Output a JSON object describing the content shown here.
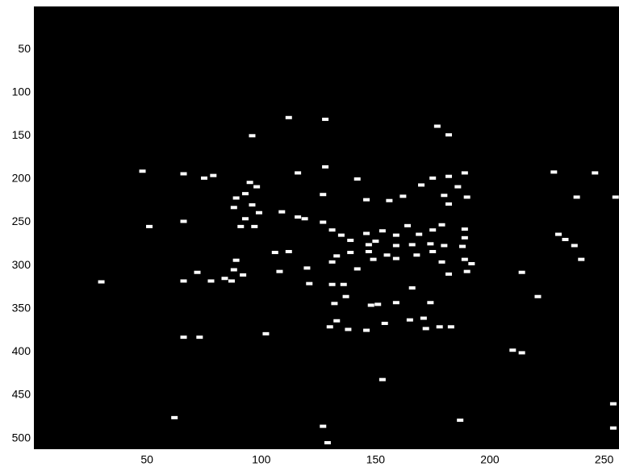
{
  "chart_data": {
    "type": "image",
    "background": "#000000",
    "color": "#ffffff",
    "xlim": [
      0.5,
      256.5
    ],
    "ylim": [
      0.5,
      512.5
    ],
    "y_reversed": true,
    "xticks": [
      50,
      100,
      150,
      200,
      250
    ],
    "yticks": [
      50,
      100,
      150,
      200,
      250,
      300,
      350,
      400,
      450,
      500
    ],
    "spots": {
      "x": [
        112,
        128,
        96,
        177,
        182,
        48,
        66,
        75,
        79,
        116,
        128,
        142,
        95,
        98,
        175,
        189,
        182,
        170,
        186,
        190,
        180,
        162,
        156,
        146,
        182,
        127,
        89,
        93,
        88,
        96,
        99,
        109,
        93,
        116,
        119,
        91,
        97,
        51,
        66,
        127,
        131,
        135,
        139,
        146,
        150,
        153,
        159,
        164,
        169,
        175,
        179,
        189,
        189,
        188,
        180,
        174,
        166,
        159,
        155,
        147,
        147,
        139,
        133,
        175,
        168,
        159,
        149,
        142,
        131,
        189,
        192,
        179,
        190,
        182,
        106,
        112,
        89,
        88,
        108,
        120,
        92,
        84,
        78,
        72,
        66,
        30,
        87,
        121,
        131,
        136,
        166,
        214,
        230,
        233,
        237,
        240,
        228,
        246,
        238,
        255,
        221,
        137,
        132,
        148,
        151,
        159,
        174,
        171,
        165,
        154,
        146,
        138,
        133,
        130,
        172,
        178,
        183,
        102,
        66,
        73,
        210,
        214,
        153,
        62,
        127,
        129,
        187,
        254,
        254
      ],
      "y": [
        129,
        131,
        150,
        139,
        149,
        191,
        194,
        199,
        196,
        193,
        186,
        200,
        204,
        209,
        199,
        193,
        197,
        207,
        209,
        221,
        219,
        220,
        225,
        224,
        229,
        218,
        222,
        217,
        233,
        230,
        239,
        238,
        246,
        244,
        246,
        255,
        255,
        255,
        249,
        250,
        259,
        265,
        271,
        263,
        272,
        260,
        265,
        254,
        264,
        259,
        253,
        258,
        268,
        278,
        277,
        275,
        276,
        277,
        288,
        276,
        284,
        285,
        289,
        284,
        288,
        292,
        293,
        304,
        296,
        293,
        298,
        296,
        307,
        310,
        285,
        284,
        294,
        305,
        307,
        303,
        311,
        315,
        318,
        308,
        318,
        319,
        318,
        321,
        322,
        322,
        326,
        308,
        264,
        270,
        277,
        293,
        192,
        193,
        221,
        221,
        336,
        336,
        344,
        346,
        345,
        343,
        343,
        361,
        363,
        367,
        375,
        374,
        364,
        371,
        373,
        371,
        371,
        379,
        383,
        383,
        398,
        401,
        432,
        476,
        486,
        505,
        479,
        460,
        488
      ]
    }
  }
}
